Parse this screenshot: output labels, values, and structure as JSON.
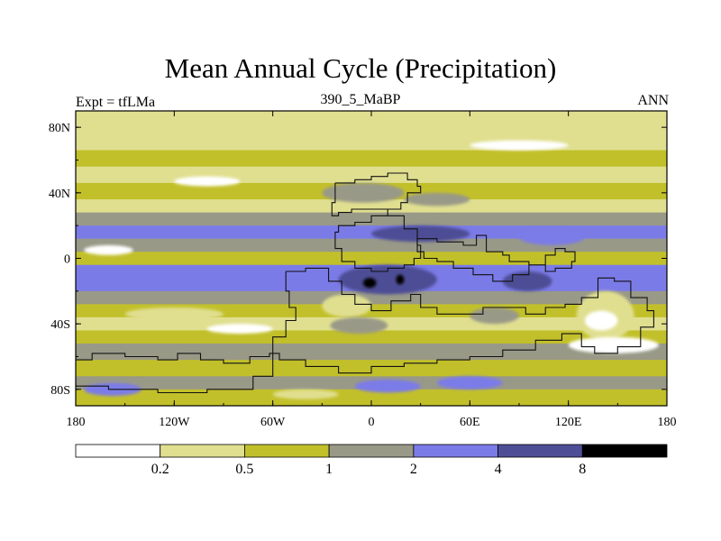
{
  "chart_data": {
    "type": "heatmap",
    "title": "Mean Annual Cycle (Precipitation)",
    "subtitle_left": "Expt = tfLMa",
    "subtitle_center": "390_5_MaBP",
    "subtitle_right": "ANN",
    "x_ticks": [
      "180",
      "120W",
      "60W",
      "0",
      "60E",
      "120E",
      "180"
    ],
    "y_ticks": [
      "80N",
      "40N",
      "0",
      "40S",
      "80S"
    ],
    "xlim": [
      -180,
      180
    ],
    "ylim": [
      -90,
      90
    ],
    "colorbar": {
      "levels": [
        "0.2",
        "0.5",
        "1",
        "2",
        "4",
        "8"
      ],
      "colors": [
        "#ffffff",
        "#e0df90",
        "#c2c02a",
        "#999988",
        "#7b7be8",
        "#4e4e96",
        "#000000"
      ]
    },
    "zonal_bands": [
      {
        "lat_top": 90,
        "lat_bottom": 78,
        "level": 1
      },
      {
        "lat_top": 78,
        "lat_bottom": 66,
        "level": 1
      },
      {
        "lat_top": 66,
        "lat_bottom": 56,
        "level": 2
      },
      {
        "lat_top": 56,
        "lat_bottom": 46,
        "level": 1
      },
      {
        "lat_top": 46,
        "lat_bottom": 36,
        "level": 2
      },
      {
        "lat_top": 36,
        "lat_bottom": 28,
        "level": 1
      },
      {
        "lat_top": 28,
        "lat_bottom": 20,
        "level": 3
      },
      {
        "lat_top": 20,
        "lat_bottom": 12,
        "level": 4
      },
      {
        "lat_top": 12,
        "lat_bottom": 4,
        "level": 3
      },
      {
        "lat_top": 4,
        "lat_bottom": -4,
        "level": 2
      },
      {
        "lat_top": -4,
        "lat_bottom": -12,
        "level": 4
      },
      {
        "lat_top": -12,
        "lat_bottom": -20,
        "level": 4
      },
      {
        "lat_top": -20,
        "lat_bottom": -28,
        "level": 3
      },
      {
        "lat_top": -28,
        "lat_bottom": -36,
        "level": 2
      },
      {
        "lat_top": -36,
        "lat_bottom": -44,
        "level": 1
      },
      {
        "lat_top": -44,
        "lat_bottom": -52,
        "level": 2
      },
      {
        "lat_top": -52,
        "lat_bottom": -62,
        "level": 3
      },
      {
        "lat_top": -62,
        "lat_bottom": -72,
        "level": 2
      },
      {
        "lat_top": -72,
        "lat_bottom": -80,
        "level": 3
      },
      {
        "lat_top": -80,
        "lat_bottom": -90,
        "level": 2
      }
    ],
    "patches": [
      {
        "lon": [
          -175,
          -145
        ],
        "lat": [
          8,
          2
        ],
        "level": 0
      },
      {
        "lon": [
          -150,
          -90
        ],
        "lat": [
          -30,
          -38
        ],
        "level": 1
      },
      {
        "lon": [
          -100,
          -60
        ],
        "lat": [
          -40,
          -46
        ],
        "level": 0
      },
      {
        "lon": [
          -30,
          20
        ],
        "lat": [
          46,
          34
        ],
        "level": 3
      },
      {
        "lon": [
          20,
          60
        ],
        "lat": [
          40,
          32
        ],
        "level": 3
      },
      {
        "lon": [
          0,
          60
        ],
        "lat": [
          20,
          10
        ],
        "level": 5
      },
      {
        "lon": [
          90,
          130
        ],
        "lat": [
          18,
          8
        ],
        "level": 4
      },
      {
        "lon": [
          -20,
          40
        ],
        "lat": [
          -4,
          -22
        ],
        "level": 5
      },
      {
        "lon": [
          80,
          110
        ],
        "lat": [
          -8,
          -20
        ],
        "level": 5
      },
      {
        "lon": [
          -5,
          3
        ],
        "lat": [
          -12,
          -18
        ],
        "level": 6
      },
      {
        "lon": [
          15,
          20
        ],
        "lat": [
          -10,
          -16
        ],
        "level": 6
      },
      {
        "lon": [
          -30,
          0
        ],
        "lat": [
          -22,
          -36
        ],
        "level": 1
      },
      {
        "lon": [
          -25,
          10
        ],
        "lat": [
          -36,
          -46
        ],
        "level": 3
      },
      {
        "lon": [
          125,
          160
        ],
        "lat": [
          -20,
          -50
        ],
        "level": 1
      },
      {
        "lon": [
          130,
          150
        ],
        "lat": [
          -32,
          -44
        ],
        "level": 0
      },
      {
        "lon": [
          120,
          175
        ],
        "lat": [
          -48,
          -58
        ],
        "level": 0
      },
      {
        "lon": [
          40,
          80
        ],
        "lat": [
          -72,
          -80
        ],
        "level": 4
      },
      {
        "lon": [
          -10,
          30
        ],
        "lat": [
          -74,
          -82
        ],
        "level": 4
      },
      {
        "lon": [
          -175,
          -140
        ],
        "lat": [
          -76,
          -84
        ],
        "level": 4
      },
      {
        "lon": [
          -60,
          -20
        ],
        "lat": [
          -80,
          -86
        ],
        "level": 1
      },
      {
        "lon": [
          60,
          90
        ],
        "lat": [
          -30,
          -40
        ],
        "level": 3
      },
      {
        "lon": [
          -120,
          -80
        ],
        "lat": [
          50,
          44
        ],
        "level": 0
      },
      {
        "lon": [
          60,
          120
        ],
        "lat": [
          72,
          66
        ],
        "level": 0
      }
    ],
    "land_outlines": [
      {
        "name": "north-africa-eurasia",
        "points": [
          [
            -22,
            46
          ],
          [
            -10,
            48
          ],
          [
            0,
            50
          ],
          [
            10,
            52
          ],
          [
            22,
            48
          ],
          [
            28,
            44
          ],
          [
            30,
            40
          ],
          [
            22,
            34
          ],
          [
            18,
            30
          ],
          [
            10,
            26
          ],
          [
            0,
            22
          ],
          [
            -10,
            20
          ],
          [
            -20,
            16
          ],
          [
            -22,
            6
          ],
          [
            -18,
            -2
          ],
          [
            -10,
            -6
          ],
          [
            0,
            -8
          ],
          [
            10,
            -6
          ],
          [
            20,
            -4
          ],
          [
            26,
            0
          ],
          [
            30,
            8
          ],
          [
            28,
            18
          ],
          [
            20,
            26
          ],
          [
            10,
            30
          ],
          [
            -2,
            30
          ],
          [
            -12,
            28
          ],
          [
            -20,
            26
          ],
          [
            -24,
            34
          ],
          [
            -22,
            46
          ]
        ]
      },
      {
        "name": "central-asia",
        "points": [
          [
            28,
            12
          ],
          [
            40,
            10
          ],
          [
            56,
            8
          ],
          [
            64,
            14
          ],
          [
            70,
            4
          ],
          [
            80,
            2
          ],
          [
            84,
            -2
          ],
          [
            96,
            -4
          ],
          [
            106,
            2
          ],
          [
            112,
            6
          ],
          [
            118,
            4
          ],
          [
            124,
            -2
          ],
          [
            122,
            -6
          ],
          [
            112,
            -8
          ],
          [
            106,
            -4
          ],
          [
            96,
            -10
          ],
          [
            86,
            -14
          ],
          [
            74,
            -10
          ],
          [
            62,
            -6
          ],
          [
            50,
            -2
          ],
          [
            40,
            0
          ],
          [
            32,
            4
          ],
          [
            28,
            12
          ]
        ]
      },
      {
        "name": "south-gondwana",
        "points": [
          [
            -52,
            -8
          ],
          [
            -40,
            -6
          ],
          [
            -26,
            -14
          ],
          [
            -18,
            -22
          ],
          [
            -10,
            -28
          ],
          [
            0,
            -32
          ],
          [
            12,
            -26
          ],
          [
            24,
            -22
          ],
          [
            30,
            -30
          ],
          [
            40,
            -34
          ],
          [
            56,
            -34
          ],
          [
            68,
            -30
          ],
          [
            80,
            -30
          ],
          [
            94,
            -34
          ],
          [
            106,
            -30
          ],
          [
            118,
            -28
          ],
          [
            128,
            -24
          ],
          [
            138,
            -12
          ],
          [
            148,
            -14
          ],
          [
            158,
            -24
          ],
          [
            168,
            -32
          ],
          [
            172,
            -42
          ],
          [
            164,
            -54
          ],
          [
            150,
            -58
          ],
          [
            136,
            -54
          ],
          [
            128,
            -46
          ],
          [
            116,
            -50
          ],
          [
            100,
            -56
          ],
          [
            80,
            -60
          ],
          [
            60,
            -62
          ],
          [
            40,
            -64
          ],
          [
            20,
            -66
          ],
          [
            0,
            -70
          ],
          [
            -20,
            -66
          ],
          [
            -40,
            -62
          ],
          [
            -56,
            -58
          ],
          [
            -60,
            -48
          ],
          [
            -52,
            -38
          ],
          [
            -46,
            -30
          ],
          [
            -50,
            -20
          ],
          [
            -52,
            -8
          ]
        ]
      },
      {
        "name": "southwest-margin",
        "points": [
          [
            -180,
            -62
          ],
          [
            -170,
            -58
          ],
          [
            -150,
            -60
          ],
          [
            -130,
            -62
          ],
          [
            -118,
            -58
          ],
          [
            -104,
            -62
          ],
          [
            -90,
            -64
          ],
          [
            -74,
            -60
          ],
          [
            -62,
            -58
          ],
          [
            -60,
            -72
          ],
          [
            -72,
            -80
          ],
          [
            -100,
            -82
          ],
          [
            -130,
            -80
          ],
          [
            -160,
            -78
          ],
          [
            -180,
            -76
          ]
        ]
      }
    ]
  }
}
